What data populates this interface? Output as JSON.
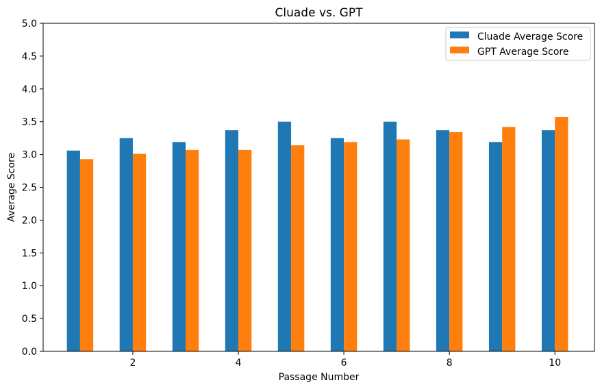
{
  "chart_data": {
    "type": "bar",
    "title": "Cluade vs. GPT",
    "xlabel": "Passage Number",
    "ylabel": "Average Score",
    "x": [
      1,
      2,
      3,
      4,
      5,
      6,
      7,
      8,
      9,
      10
    ],
    "x_ticks": [
      2,
      4,
      6,
      8,
      10
    ],
    "x_tick_labels": [
      "2",
      "4",
      "6",
      "8",
      "10"
    ],
    "xlim": [
      0.3,
      10.75
    ],
    "ylim": [
      0,
      5
    ],
    "y_ticks": [
      0.0,
      0.5,
      1.0,
      1.5,
      2.0,
      2.5,
      3.0,
      3.5,
      4.0,
      4.5,
      5.0
    ],
    "y_tick_labels": [
      "0.0",
      "0.5",
      "1.0",
      "1.5",
      "2.0",
      "2.5",
      "3.0",
      "3.5",
      "4.0",
      "4.5",
      "5.0"
    ],
    "grid": false,
    "legend_position": "top-right",
    "series": [
      {
        "name": "Cluade Average Score",
        "color": "#1f77b4",
        "values": [
          3.06,
          3.25,
          3.19,
          3.37,
          3.5,
          3.25,
          3.5,
          3.37,
          3.19,
          3.37
        ]
      },
      {
        "name": "GPT Average Score",
        "color": "#ff7f0e",
        "values": [
          2.93,
          3.01,
          3.07,
          3.07,
          3.14,
          3.19,
          3.23,
          3.34,
          3.42,
          3.57
        ]
      }
    ]
  }
}
